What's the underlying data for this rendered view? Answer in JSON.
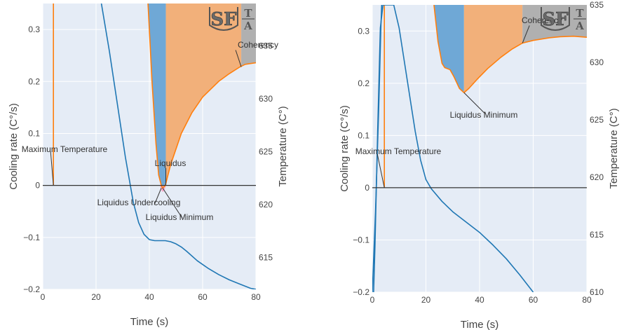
{
  "chart_data": [
    {
      "type": "line",
      "xlabel": "Time (s)",
      "ylabel": "Cooling rate (C°/s)",
      "y2label": "Temperature (C°)",
      "xlim": [
        0,
        80
      ],
      "ylim": [
        -0.2,
        0.35
      ],
      "y2lim": [
        612,
        639
      ],
      "x_ticks": [
        0,
        20,
        40,
        60,
        80
      ],
      "y_ticks": [
        -0.2,
        -0.1,
        0,
        0.1,
        0.2,
        0.3
      ],
      "y_tick_labels": [
        "−0.2",
        "−0.1",
        "0",
        "0.1",
        "0.2",
        "0.3"
      ],
      "y2_ticks": [
        615,
        620,
        625,
        630,
        635
      ],
      "colors": {
        "cooling_rate": "#ff7f0e",
        "temperature": "#1f77b4",
        "plot_bg": "#e5ecf6",
        "liquidus_fill": "#6fa8d6",
        "solid_fill": "#f2b07a",
        "coherency_fill": "#b0b0b0",
        "undercooling_fill": "#f7a8c8"
      },
      "series": [
        {
          "role": "cooling_rate",
          "axis": "y",
          "x": [
            4.0,
            4.0
          ],
          "y": [
            0.0,
            0.35
          ]
        },
        {
          "role": "temperature",
          "axis": "y2",
          "x": [
            22,
            25,
            28,
            31,
            34,
            36,
            38,
            40,
            42,
            44,
            46,
            48,
            50,
            52,
            54,
            58,
            62,
            66,
            70,
            74,
            76,
            78,
            80
          ],
          "y": [
            639,
            634.5,
            629.5,
            624.5,
            620.2,
            618.3,
            617.2,
            616.7,
            616.6,
            616.6,
            616.6,
            616.5,
            616.3,
            616.0,
            615.6,
            614.7,
            614.0,
            613.4,
            612.9,
            612.5,
            612.3,
            612.1,
            612.0
          ]
        },
        {
          "role": "cooling_curve_edge",
          "axis": "y",
          "x": [
            39.5,
            41.0,
            42.5,
            43.5,
            44.5,
            45.0,
            46.0,
            48.0,
            52.0,
            56.0,
            60.0,
            66.0,
            70.0,
            74.0,
            76.0,
            80.0
          ],
          "y": [
            0.35,
            0.2,
            0.08,
            0.02,
            0.0,
            -0.005,
            0.0,
            0.04,
            0.1,
            0.14,
            0.17,
            0.2,
            0.215,
            0.228,
            0.233,
            0.236
          ]
        }
      ],
      "regions": [
        {
          "name": "liquidus",
          "x": [
            39.5,
            46.2
          ]
        },
        {
          "name": "solid",
          "x": [
            46.2,
            74.5
          ]
        },
        {
          "name": "coherency",
          "x": [
            74.5,
            80
          ]
        }
      ],
      "annotations": [
        {
          "text": "Maximum Temperature",
          "x": 4,
          "y": 0.0
        },
        {
          "text": "Liquidus",
          "x": 46.2,
          "y": 0.0
        },
        {
          "text": "Liquidus Undercooling",
          "x": 44.5,
          "y": -0.005
        },
        {
          "text": "Liquidus Minimum",
          "x": 45.0,
          "y": -0.005
        },
        {
          "text": "Coherency",
          "x": 74.5,
          "y": 0.228
        }
      ]
    },
    {
      "type": "line",
      "xlabel": "Time (s)",
      "ylabel": "Cooling rate (C°/s)",
      "y2label": "Temperature (C°)",
      "xlim": [
        0,
        80
      ],
      "ylim": [
        -0.2,
        0.35
      ],
      "y2lim": [
        610,
        635
      ],
      "x_ticks": [
        0,
        20,
        40,
        60,
        80
      ],
      "y_ticks": [
        -0.2,
        -0.1,
        0,
        0.1,
        0.2,
        0.3
      ],
      "y_tick_labels": [
        "−0.2",
        "−0.1",
        "0",
        "0.1",
        "0.2",
        "0.3"
      ],
      "y2_ticks": [
        610,
        615,
        620,
        625,
        630,
        635
      ],
      "colors": {
        "cooling_rate": "#ff7f0e",
        "temperature": "#1f77b4",
        "plot_bg": "#e5ecf6",
        "liquidus_fill": "#6fa8d6",
        "solid_fill": "#f2b07a",
        "coherency_fill": "#b0b0b0"
      },
      "series": [
        {
          "role": "cooling_rate",
          "axis": "y",
          "x": [
            4.5,
            4.5
          ],
          "y": [
            0.0,
            0.35
          ]
        },
        {
          "role": "temperature",
          "axis": "y2",
          "x": [
            0.5,
            1,
            1.5,
            2,
            3,
            4,
            5,
            6,
            7,
            8,
            10,
            12,
            14,
            16,
            18,
            20,
            22,
            26,
            30,
            35,
            40,
            45,
            50,
            55,
            60
          ],
          "y": [
            610,
            614,
            619,
            624,
            633,
            635,
            635,
            635,
            635,
            635,
            633,
            630,
            627,
            624,
            621.5,
            619.8,
            619.0,
            617.9,
            617.0,
            616.1,
            615.2,
            614.1,
            612.9,
            611.5,
            610
          ]
        },
        {
          "role": "temperature_steep",
          "axis": "y2",
          "x": [
            0,
            1.2,
            2.4,
            3.2,
            3.5
          ],
          "y": [
            610,
            617,
            626,
            633,
            635
          ]
        },
        {
          "role": "cooling_curve_edge",
          "axis": "y",
          "x": [
            23.0,
            24.5,
            26.0,
            27.0,
            29.0,
            30.5,
            32.5,
            34.2,
            36.0,
            39.0,
            43.0,
            48.0,
            52.0,
            56.0,
            60.0,
            66.0,
            70.0,
            75.0,
            80.0
          ],
          "y": [
            0.35,
            0.28,
            0.238,
            0.23,
            0.226,
            0.212,
            0.19,
            0.182,
            0.19,
            0.207,
            0.228,
            0.25,
            0.265,
            0.277,
            0.282,
            0.287,
            0.289,
            0.29,
            0.288
          ]
        }
      ],
      "regions": [
        {
          "name": "liquidus",
          "x": [
            23.0,
            34.2
          ]
        },
        {
          "name": "solid",
          "x": [
            34.2,
            56.0
          ]
        },
        {
          "name": "coherency",
          "x": [
            56.0,
            80
          ]
        }
      ],
      "annotations": [
        {
          "text": "Maximum Temperature",
          "x": 4.5,
          "y": 0.0
        },
        {
          "text": "Liquidus Minimum",
          "x": 34.2,
          "y": 0.182
        },
        {
          "text": "Coherency",
          "x": 56.0,
          "y": 0.277
        }
      ]
    }
  ],
  "logo": {
    "big": "SF",
    "top": "T",
    "bottom": "A"
  }
}
